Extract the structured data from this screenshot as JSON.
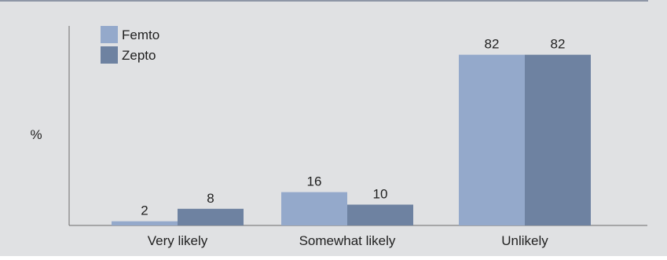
{
  "chart_data": {
    "type": "bar",
    "categories": [
      "Very likely",
      "Somewhat likely",
      "Unlikely"
    ],
    "series": [
      {
        "name": "Femto",
        "values": [
          2,
          16,
          82
        ],
        "color": "#94a9cb"
      },
      {
        "name": "Zepto",
        "values": [
          8,
          10,
          82
        ],
        "color": "#6e82a1"
      }
    ],
    "ylabel": "%",
    "xlabel": "",
    "ylim": [
      0,
      100
    ],
    "grid": false,
    "legend": "top-left",
    "data_labels": true,
    "colors": {
      "background": "#e0e1e3",
      "top_rule": "#8e96a6",
      "axis": "#6b6b6b"
    }
  }
}
